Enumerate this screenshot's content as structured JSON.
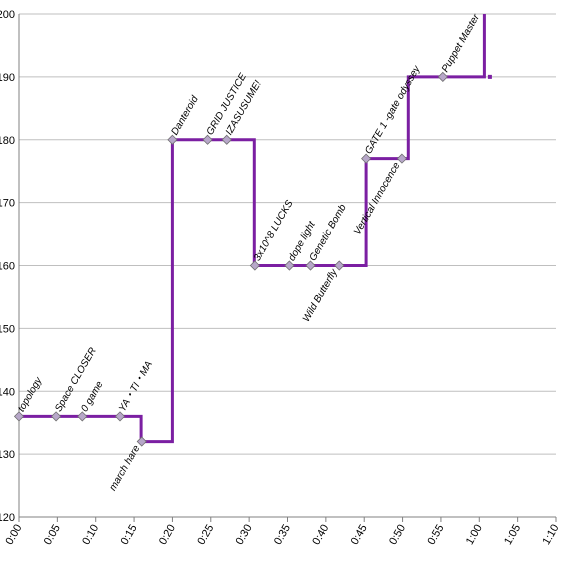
{
  "chart_data": {
    "type": "line",
    "title": "",
    "xlabel": "",
    "ylabel": "",
    "grid": true,
    "legend": "none",
    "colors": {
      "line": "#7b1fa2",
      "marker_fill": "#b7a7c9",
      "marker_stroke": "#6f6f6f",
      "grid": "#bfbfbf",
      "axis": "#808080"
    },
    "xlim_seconds": [
      0,
      4200
    ],
    "ylim": [
      120,
      200
    ],
    "yticks": [
      120,
      130,
      140,
      150,
      160,
      170,
      180,
      190,
      200
    ],
    "xticks": [
      {
        "sec": 0,
        "label": "0:00"
      },
      {
        "sec": 300,
        "label": "0:05"
      },
      {
        "sec": 600,
        "label": "0:10"
      },
      {
        "sec": 900,
        "label": "0:15"
      },
      {
        "sec": 1200,
        "label": "0:20"
      },
      {
        "sec": 1500,
        "label": "0:25"
      },
      {
        "sec": 1800,
        "label": "0:30"
      },
      {
        "sec": 2100,
        "label": "0:35"
      },
      {
        "sec": 2400,
        "label": "0:40"
      },
      {
        "sec": 2700,
        "label": "0:45"
      },
      {
        "sec": 3000,
        "label": "0:50"
      },
      {
        "sec": 3300,
        "label": "0:55"
      },
      {
        "sec": 3600,
        "label": "1:00"
      },
      {
        "sec": 3900,
        "label": "1:05"
      },
      {
        "sec": 4200,
        "label": "1:10"
      }
    ],
    "line_steps": [
      {
        "x": 0,
        "y": 136
      },
      {
        "x": 955,
        "y": 136
      },
      {
        "x": 955,
        "y": 132
      },
      {
        "x": 1200,
        "y": 132
      },
      {
        "x": 1200,
        "y": 180
      },
      {
        "x": 1840,
        "y": 180
      },
      {
        "x": 1840,
        "y": 160
      },
      {
        "x": 2715,
        "y": 160
      },
      {
        "x": 2715,
        "y": 177
      },
      {
        "x": 3045,
        "y": 177
      },
      {
        "x": 3045,
        "y": 190
      },
      {
        "x": 3640,
        "y": 190
      },
      {
        "x": 3640,
        "y": 200
      }
    ],
    "tail_marker": {
      "x": 3683,
      "y": 190
    },
    "points": [
      {
        "x": 0,
        "y": 136,
        "label": "topology",
        "pos": "above"
      },
      {
        "x": 290,
        "y": 136,
        "label": "Space CLOSER",
        "pos": "above"
      },
      {
        "x": 495,
        "y": 136,
        "label": "0 game",
        "pos": "above"
      },
      {
        "x": 790,
        "y": 136,
        "label": "YA・TI・MA",
        "pos": "above"
      },
      {
        "x": 960,
        "y": 132,
        "label": "march hare",
        "pos": "below"
      },
      {
        "x": 1200,
        "y": 180,
        "label": "Danteroid",
        "pos": "above"
      },
      {
        "x": 1475,
        "y": 180,
        "label": "GRID JUSTICE",
        "pos": "above"
      },
      {
        "x": 1625,
        "y": 180,
        "label": "IZASUSUME!",
        "pos": "above"
      },
      {
        "x": 1845,
        "y": 160,
        "label": "3x10^8 LUCKS",
        "pos": "above"
      },
      {
        "x": 2115,
        "y": 160,
        "label": "dope light",
        "pos": "above"
      },
      {
        "x": 2280,
        "y": 160,
        "label": "Genetic Bomb",
        "pos": "above"
      },
      {
        "x": 2505,
        "y": 160,
        "label": "Wild Butterfly",
        "pos": "below"
      },
      {
        "x": 2715,
        "y": 177,
        "label": "GATE 1 -gate odyssey",
        "pos": "above"
      },
      {
        "x": 2995,
        "y": 177,
        "label": "Vertical Innocence",
        "pos": "below"
      },
      {
        "x": 3315,
        "y": 190,
        "label": "Puppet Master",
        "pos": "above"
      }
    ]
  }
}
